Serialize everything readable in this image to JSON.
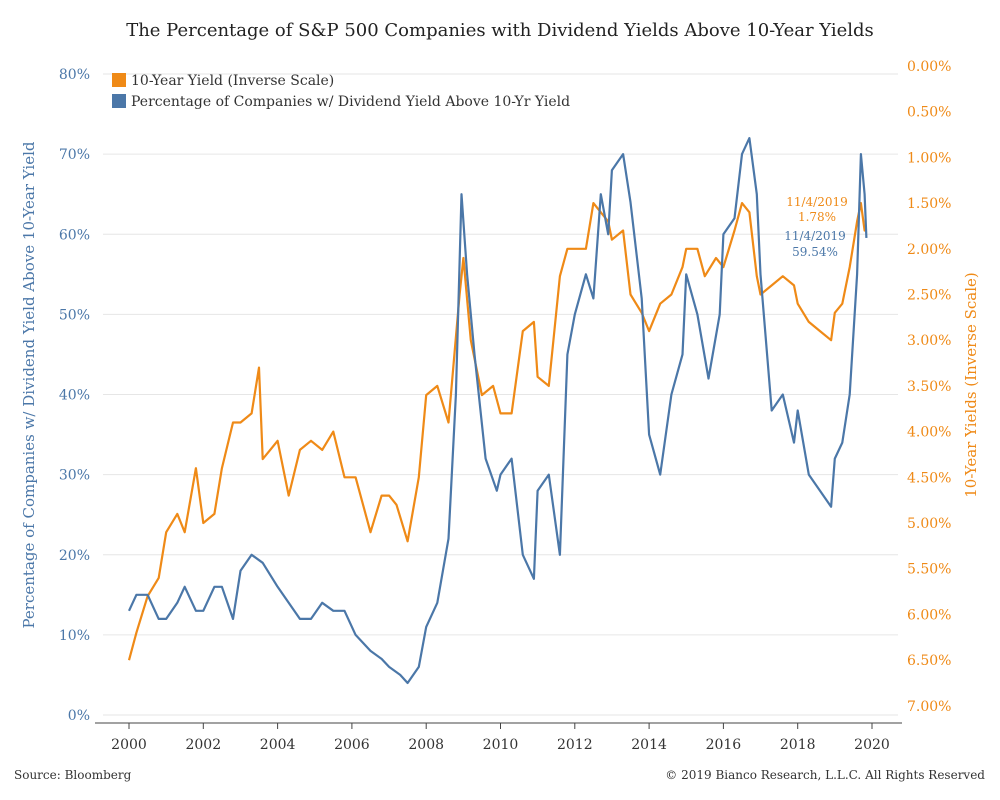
{
  "colors": {
    "blue": "#4b77a8",
    "orange": "#ef8a17",
    "text": "#333333",
    "grid": "#e6e6e6"
  },
  "footer": {
    "source": "Source: Bloomberg",
    "copyright": "© 2019 Bianco Research, L.L.C. All Rights Reserved"
  },
  "chart_data": {
    "type": "line",
    "title": "The Percentage of S&P 500 Companies with Dividend Yields Above 10-Year Yields",
    "xlabel": "",
    "ylabel_left": "Percentage of Companies w/ Dividend Yield Above 10-Year Yield",
    "ylabel_right": "10-Year Yields (Inverse Scale)",
    "x_ticks": [
      "2000",
      "2002",
      "2004",
      "2006",
      "2008",
      "2010",
      "2012",
      "2014",
      "2016",
      "2018",
      "2020"
    ],
    "y_left_ticks": [
      "0%",
      "10%",
      "20%",
      "30%",
      "40%",
      "50%",
      "60%",
      "70%",
      "80%"
    ],
    "y_right_ticks": [
      "0.00%",
      "0.50%",
      "1.00%",
      "1.50%",
      "2.00%",
      "2.50%",
      "3.00%",
      "3.50%",
      "4.00%",
      "4.50%",
      "5.00%",
      "5.50%",
      "6.00%",
      "6.50%",
      "7.00%"
    ],
    "xlim": [
      1999.3,
      2020.7
    ],
    "y_left_lim": [
      0,
      81
    ],
    "y_right_lim": [
      7.1,
      0.0
    ],
    "y_right_inverted": true,
    "grid": true,
    "legend_position": "top-left",
    "legend": [
      "10-Year Yield (Inverse Scale)",
      "Percentage of Companies w/ Dividend Yield Above 10-Yr Yield"
    ],
    "annotations": [
      {
        "date": "11/4/2019",
        "value": "1.78%",
        "series": "10-Year Yield (Inverse Scale)"
      },
      {
        "date": "11/4/2019",
        "value": "59.54%",
        "series": "Percentage of Companies w/ Dividend Yield Above 10-Yr Yield"
      }
    ],
    "series": [
      {
        "name": "10-Year Yield (Inverse Scale)",
        "axis": "right",
        "x": [
          2000.0,
          2000.2,
          2000.5,
          2000.8,
          2001.0,
          2001.3,
          2001.5,
          2001.8,
          2002.0,
          2002.3,
          2002.5,
          2002.8,
          2003.0,
          2003.3,
          2003.5,
          2003.6,
          2003.8,
          2004.0,
          2004.3,
          2004.6,
          2004.9,
          2005.2,
          2005.5,
          2005.8,
          2006.1,
          2006.5,
          2006.8,
          2007.0,
          2007.2,
          2007.5,
          2007.8,
          2008.0,
          2008.3,
          2008.6,
          2008.9,
          2009.0,
          2009.2,
          2009.5,
          2009.8,
          2010.0,
          2010.3,
          2010.6,
          2010.9,
          2011.0,
          2011.3,
          2011.6,
          2011.8,
          2012.0,
          2012.3,
          2012.5,
          2012.7,
          2012.9,
          2013.0,
          2013.3,
          2013.5,
          2013.8,
          2014.0,
          2014.3,
          2014.6,
          2014.9,
          2015.0,
          2015.3,
          2015.5,
          2015.8,
          2016.0,
          2016.3,
          2016.5,
          2016.7,
          2016.9,
          2017.0,
          2017.3,
          2017.6,
          2017.9,
          2018.0,
          2018.3,
          2018.6,
          2018.9,
          2019.0,
          2019.2,
          2019.4,
          2019.6,
          2019.7,
          2019.8,
          2019.85
        ],
        "values": [
          6.5,
          6.2,
          5.8,
          5.6,
          5.1,
          4.9,
          5.1,
          4.4,
          5.0,
          4.9,
          4.4,
          3.9,
          3.9,
          3.8,
          3.3,
          4.3,
          4.2,
          4.1,
          4.7,
          4.2,
          4.1,
          4.2,
          4.0,
          4.5,
          4.5,
          5.1,
          4.7,
          4.7,
          4.8,
          5.2,
          4.5,
          3.6,
          3.5,
          3.9,
          2.5,
          2.1,
          3.0,
          3.6,
          3.5,
          3.8,
          3.8,
          2.9,
          2.8,
          3.4,
          3.5,
          2.3,
          2.0,
          2.0,
          2.0,
          1.5,
          1.6,
          1.7,
          1.9,
          1.8,
          2.5,
          2.7,
          2.9,
          2.6,
          2.5,
          2.2,
          2.0,
          2.0,
          2.3,
          2.1,
          2.2,
          1.8,
          1.5,
          1.6,
          2.3,
          2.5,
          2.4,
          2.3,
          2.4,
          2.6,
          2.8,
          2.9,
          3.0,
          2.7,
          2.6,
          2.2,
          1.7,
          1.5,
          1.8,
          1.78
        ]
      },
      {
        "name": "Percentage of Companies w/ Dividend Yield Above 10-Yr Yield",
        "axis": "left",
        "x": [
          2000.0,
          2000.2,
          2000.5,
          2000.8,
          2001.0,
          2001.3,
          2001.5,
          2001.8,
          2002.0,
          2002.3,
          2002.5,
          2002.8,
          2003.0,
          2003.3,
          2003.6,
          2004.0,
          2004.3,
          2004.6,
          2004.9,
          2005.2,
          2005.5,
          2005.8,
          2006.1,
          2006.5,
          2006.8,
          2007.0,
          2007.3,
          2007.5,
          2007.8,
          2008.0,
          2008.3,
          2008.6,
          2008.8,
          2008.95,
          2009.1,
          2009.3,
          2009.6,
          2009.9,
          2010.0,
          2010.3,
          2010.6,
          2010.9,
          2011.0,
          2011.3,
          2011.6,
          2011.8,
          2012.0,
          2012.3,
          2012.5,
          2012.7,
          2012.9,
          2013.0,
          2013.3,
          2013.5,
          2013.8,
          2014.0,
          2014.3,
          2014.6,
          2014.9,
          2015.0,
          2015.3,
          2015.6,
          2015.9,
          2016.0,
          2016.3,
          2016.5,
          2016.7,
          2016.9,
          2017.0,
          2017.3,
          2017.6,
          2017.9,
          2018.0,
          2018.3,
          2018.6,
          2018.9,
          2019.0,
          2019.2,
          2019.4,
          2019.6,
          2019.7,
          2019.8,
          2019.85
        ],
        "values": [
          13,
          15,
          15,
          12,
          12,
          14,
          16,
          13,
          13,
          16,
          16,
          12,
          18,
          20,
          19,
          16,
          14,
          12,
          12,
          14,
          13,
          13,
          10,
          8,
          7,
          6,
          5,
          4,
          6,
          11,
          14,
          22,
          40,
          65,
          55,
          45,
          32,
          28,
          30,
          32,
          20,
          17,
          28,
          30,
          20,
          45,
          50,
          55,
          52,
          65,
          60,
          68,
          70,
          64,
          52,
          35,
          30,
          40,
          45,
          55,
          50,
          42,
          50,
          60,
          62,
          70,
          72,
          65,
          55,
          38,
          40,
          34,
          38,
          30,
          28,
          26,
          32,
          34,
          40,
          55,
          70,
          65,
          59.54
        ]
      }
    ]
  }
}
